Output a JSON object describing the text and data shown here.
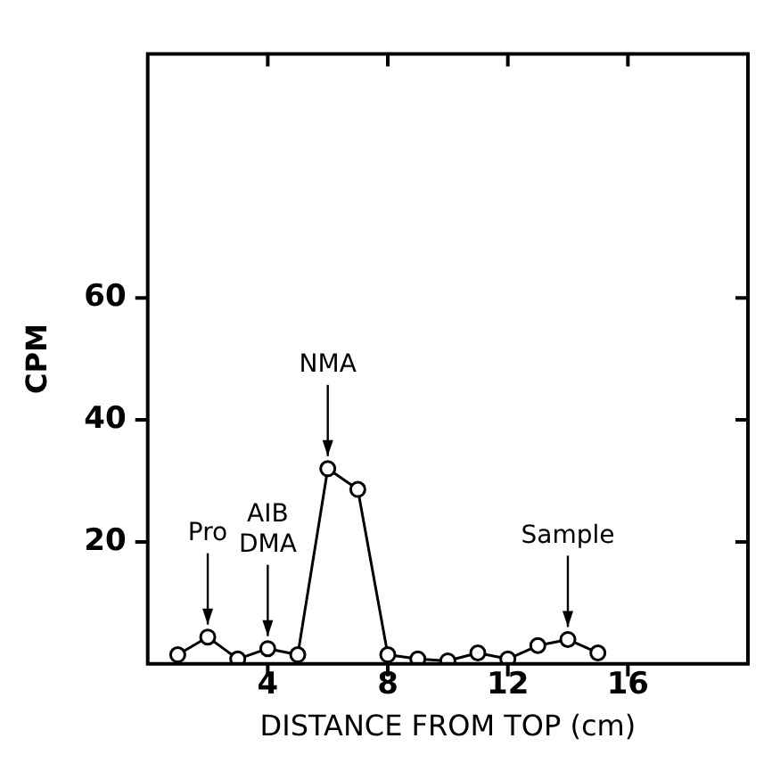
{
  "chart_data": {
    "type": "line",
    "xlabel": "DISTANCE FROM TOP (cm)",
    "ylabel": "CPM",
    "x": [
      1,
      2,
      3,
      4,
      5,
      6,
      7,
      8,
      9,
      10,
      11,
      12,
      13,
      14,
      15
    ],
    "series": [
      {
        "color": "#000000",
        "values": [
          1.5,
          4.4,
          0.8,
          2.5,
          1.5,
          32,
          28.6,
          1.5,
          0.8,
          0.5,
          1.8,
          0.8,
          3,
          4,
          1.8
        ]
      }
    ],
    "xlim": [
      0,
      20
    ],
    "xticks": [
      4,
      8,
      12,
      16
    ],
    "ylim": [
      0,
      100
    ],
    "yticks": [
      20,
      40,
      60
    ],
    "grid": false,
    "legend": false,
    "marker": "circle",
    "line_style": "solid",
    "annotations": [
      {
        "text": "Pro",
        "x": 2,
        "y": 4.4
      },
      {
        "text": "AIB\nDMA",
        "x": 4,
        "y": 2.5
      },
      {
        "text": "NMA",
        "x": 6,
        "y": 32
      },
      {
        "text": "Sample",
        "x": 14,
        "y": 4
      }
    ]
  }
}
